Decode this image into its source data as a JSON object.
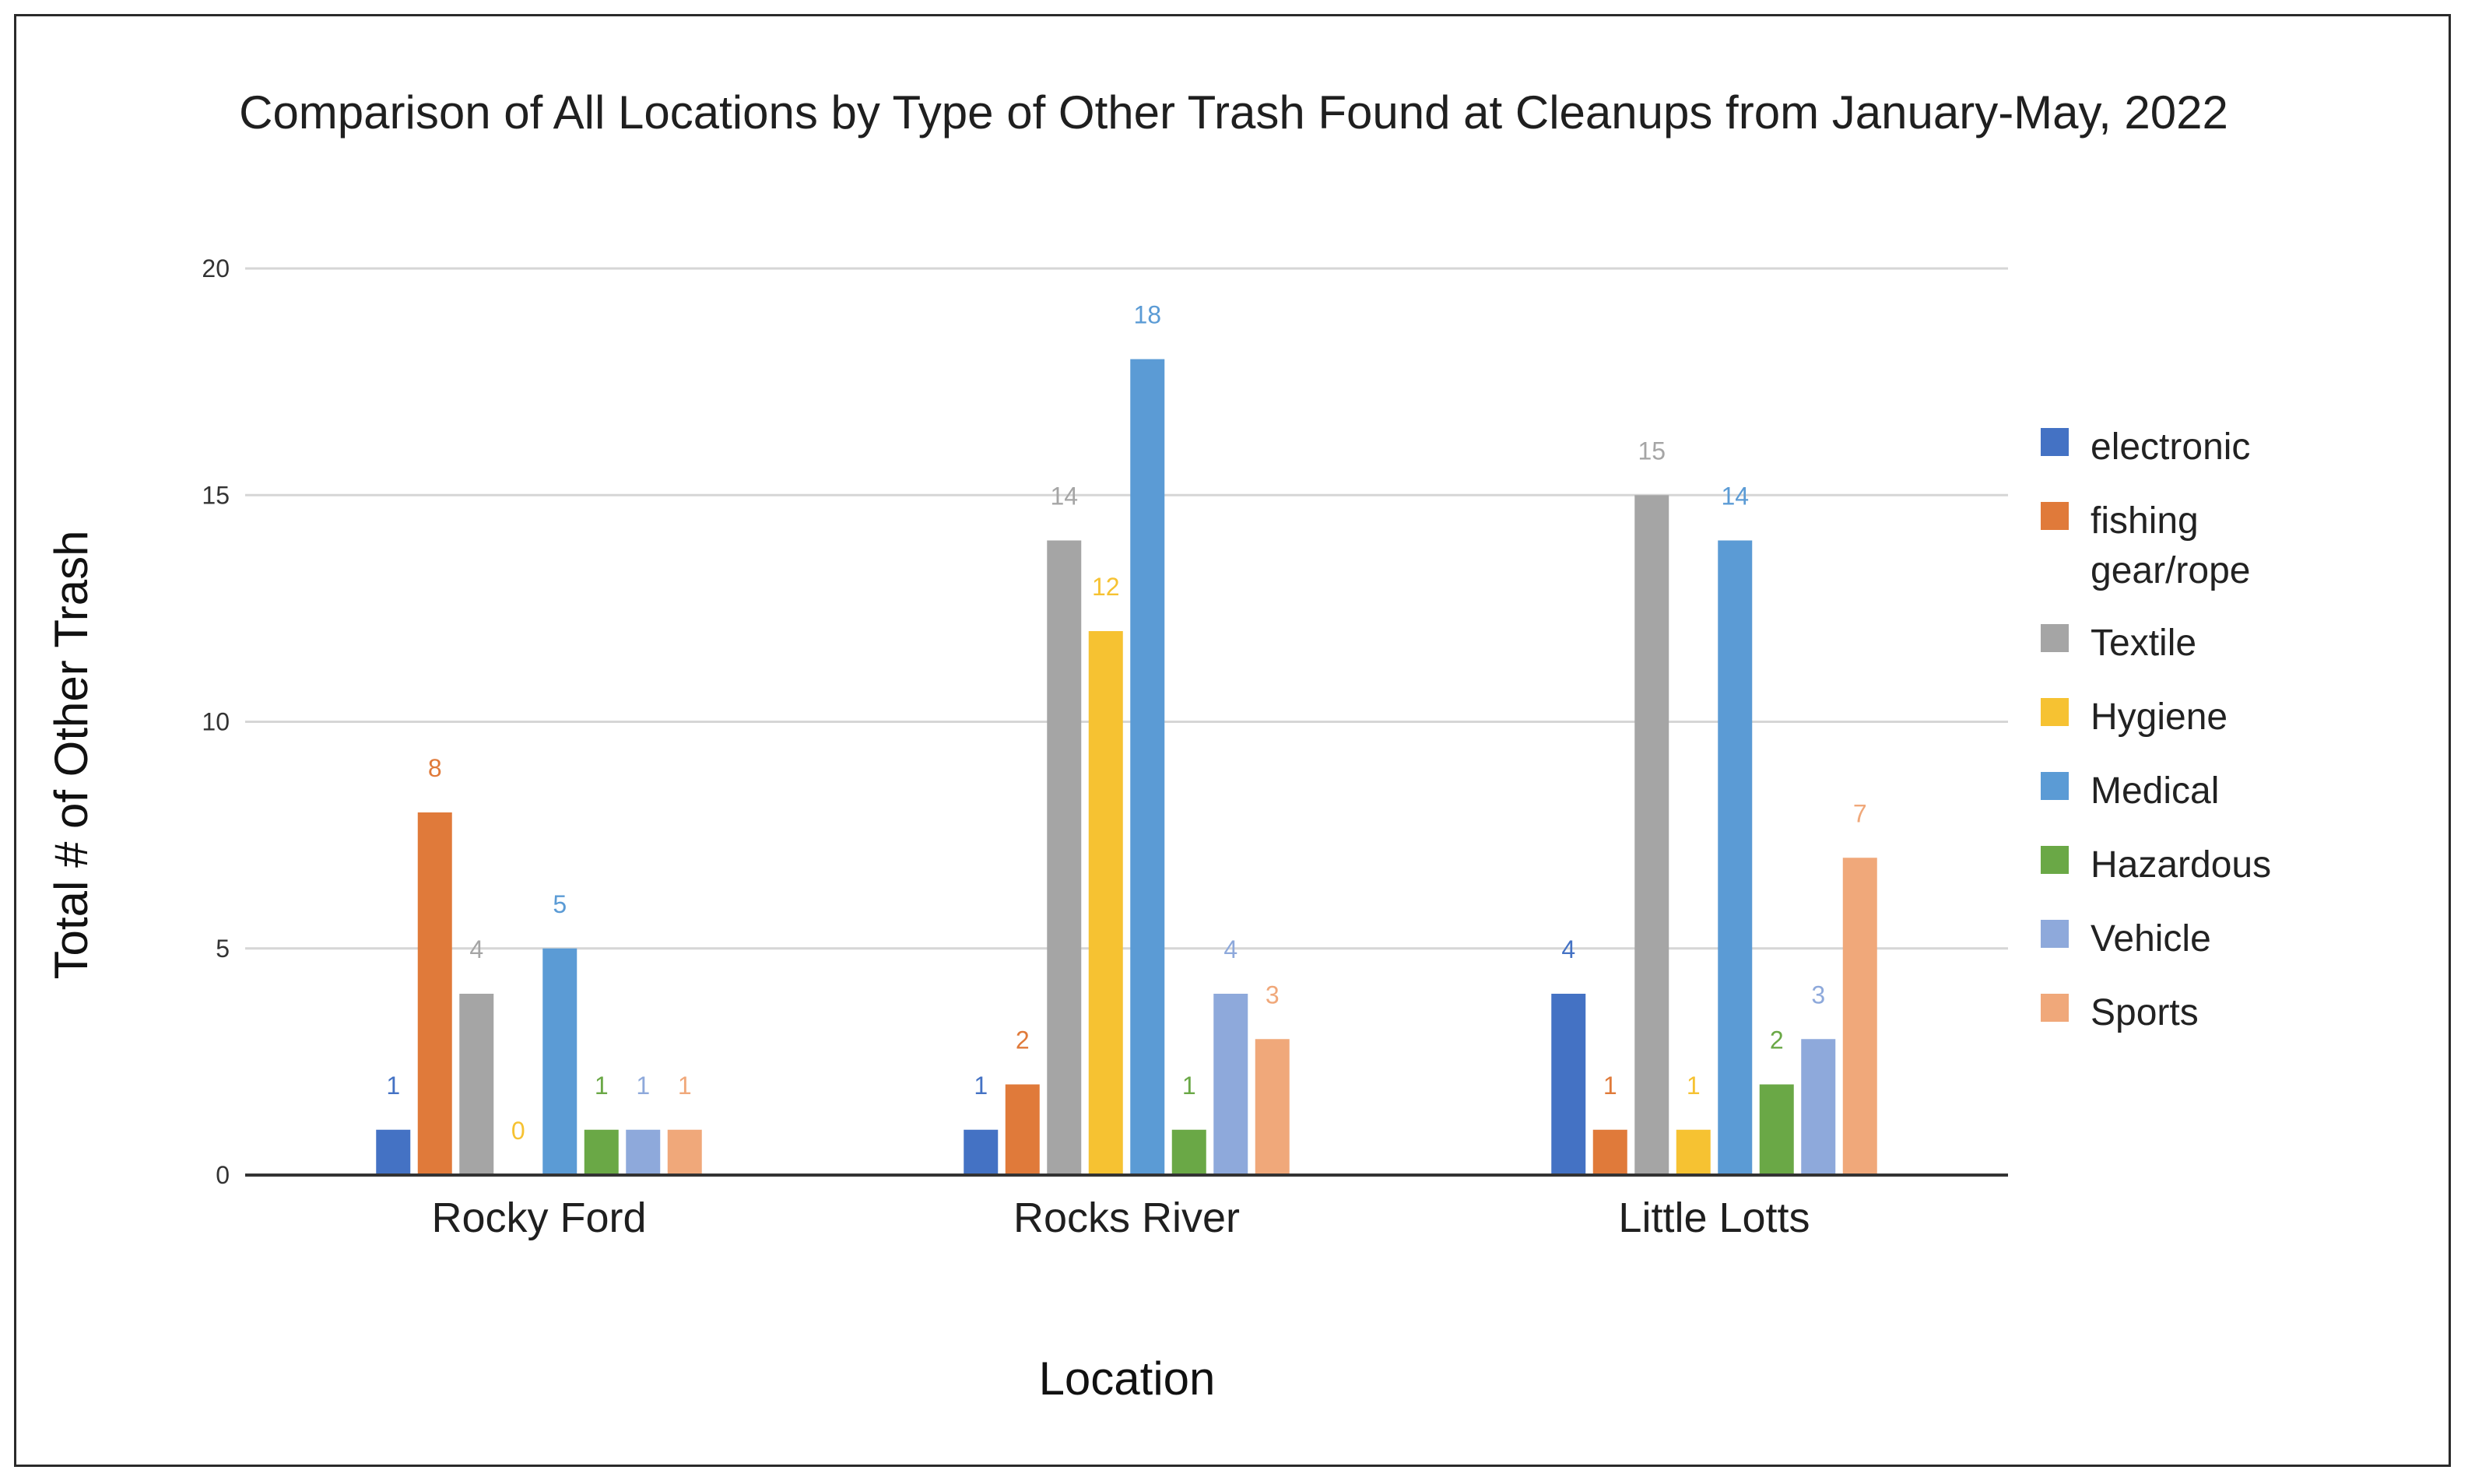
{
  "chart_data": {
    "type": "bar",
    "title": "Comparison of All Locations by Type of Other Trash Found at Cleanups from January-May, 2022",
    "xlabel": "Location",
    "ylabel": "Total # of Other Trash",
    "ylim": [
      0,
      20
    ],
    "yticks": [
      "0",
      "5",
      "10",
      "15",
      "20"
    ],
    "grid": true,
    "legend_position": "right",
    "categories": [
      "Rocky Ford",
      "Rocks River",
      "Little Lotts"
    ],
    "series": [
      {
        "name": "electronic",
        "color": "#4472c4",
        "values": [
          1,
          1,
          4
        ]
      },
      {
        "name": "fishing gear/rope",
        "color": "#e07a3a",
        "values": [
          8,
          2,
          1
        ]
      },
      {
        "name": "Textile",
        "color": "#a5a5a5",
        "values": [
          4,
          14,
          15
        ]
      },
      {
        "name": "Hygiene",
        "color": "#f6c232",
        "values": [
          0,
          12,
          1
        ]
      },
      {
        "name": "Medical",
        "color": "#5b9bd5",
        "values": [
          5,
          18,
          14
        ]
      },
      {
        "name": "Hazardous",
        "color": "#6aa846",
        "values": [
          1,
          1,
          2
        ]
      },
      {
        "name": "Vehicle",
        "color": "#8ea9db",
        "values": [
          1,
          4,
          3
        ]
      },
      {
        "name": "Sports",
        "color": "#f0a87a",
        "values": [
          1,
          3,
          7
        ]
      }
    ]
  }
}
